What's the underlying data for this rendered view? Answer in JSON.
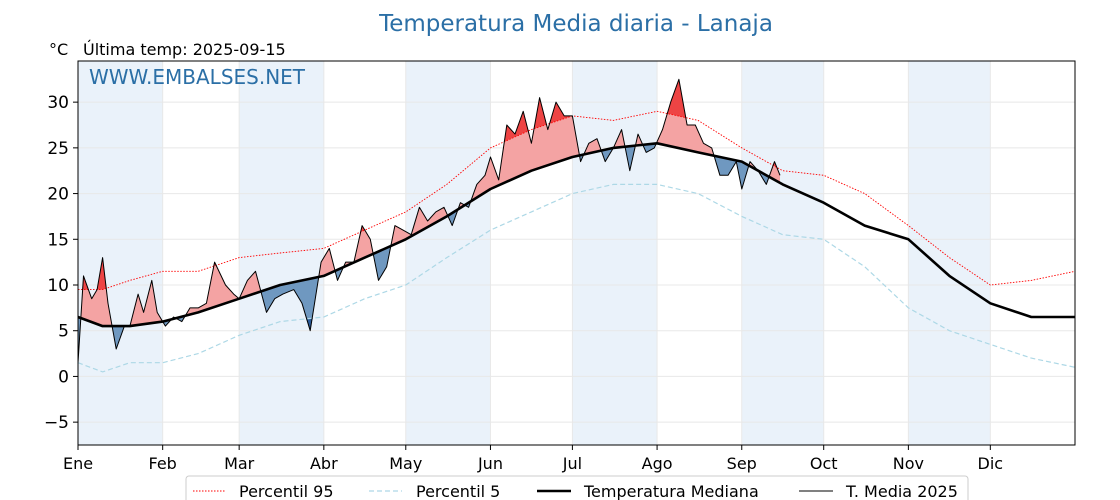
{
  "chart_data": {
    "type": "line",
    "title": "Temperatura Media diaria - Lanaja",
    "ylabel": "°C",
    "subtitle": "Última temp: 2025-09-15",
    "watermark": "WWW.EMBALSES.NET",
    "ylim": [
      -7.5,
      34.5
    ],
    "xlim": [
      1,
      366
    ],
    "y_ticks": [
      -5,
      0,
      5,
      10,
      15,
      20,
      25,
      30
    ],
    "months": [
      {
        "label": "Ene",
        "day": 1
      },
      {
        "label": "Feb",
        "day": 32
      },
      {
        "label": "Mar",
        "day": 60
      },
      {
        "label": "Abr",
        "day": 91
      },
      {
        "label": "May",
        "day": 121
      },
      {
        "label": "Jun",
        "day": 152
      },
      {
        "label": "Jul",
        "day": 182
      },
      {
        "label": "Ago",
        "day": 213
      },
      {
        "label": "Sep",
        "day": 244
      },
      {
        "label": "Oct",
        "day": 274
      },
      {
        "label": "Nov",
        "day": 305
      },
      {
        "label": "Dic",
        "day": 335
      }
    ],
    "x": [
      1,
      10,
      20,
      32,
      45,
      60,
      75,
      91,
      106,
      121,
      136,
      152,
      167,
      182,
      197,
      213,
      228,
      244,
      259,
      274,
      289,
      305,
      320,
      335,
      350,
      366
    ],
    "series": [
      {
        "name": "Percentil 95",
        "color": "#ff0000",
        "style": "dotted",
        "values": [
          9.5,
          9.5,
          10.5,
          11.5,
          11.5,
          13.0,
          13.5,
          14.0,
          16.0,
          18.0,
          21.0,
          25.0,
          27.0,
          28.5,
          28.0,
          29.0,
          28.0,
          25.0,
          22.5,
          22.0,
          20.0,
          16.5,
          13.0,
          10.0,
          10.5,
          11.5
        ]
      },
      {
        "name": "Percentil 5",
        "color": "#add8e6",
        "style": "dashed",
        "values": [
          1.5,
          0.5,
          1.5,
          1.5,
          2.5,
          4.5,
          6.0,
          6.5,
          8.5,
          10.0,
          13.0,
          16.0,
          18.0,
          20.0,
          21.0,
          21.0,
          20.0,
          17.5,
          15.5,
          15.0,
          12.0,
          7.5,
          5.0,
          3.5,
          2.0,
          1.0
        ]
      },
      {
        "name": "Temperatura Mediana",
        "color": "#000000",
        "style": "solid-thick",
        "values": [
          6.5,
          5.5,
          5.5,
          6.0,
          7.0,
          8.5,
          10.0,
          11.0,
          13.0,
          15.0,
          17.5,
          20.5,
          22.5,
          24.0,
          25.0,
          25.5,
          24.5,
          23.5,
          21.0,
          19.0,
          16.5,
          15.0,
          11.0,
          8.0,
          6.5,
          6.5
        ]
      },
      {
        "name": "T. Media 2025",
        "color": "#000000",
        "style": "solid-thin",
        "x": [
          1,
          3,
          6,
          8,
          10,
          12,
          15,
          18,
          20,
          23,
          25,
          28,
          30,
          33,
          36,
          39,
          42,
          45,
          48,
          51,
          55,
          58,
          60,
          63,
          66,
          70,
          73,
          76,
          80,
          83,
          86,
          90,
          93,
          96,
          99,
          102,
          105,
          108,
          111,
          114,
          117,
          120,
          123,
          126,
          129,
          132,
          135,
          138,
          141,
          144,
          147,
          150,
          152,
          155,
          158,
          161,
          164,
          167,
          170,
          173,
          176,
          179,
          182,
          185,
          188,
          191,
          194,
          197,
          200,
          203,
          206,
          209,
          212,
          215,
          218,
          221,
          224,
          227,
          230,
          233,
          236,
          239,
          242,
          244,
          247,
          250,
          253,
          256,
          258
        ],
        "values": [
          1.5,
          11.0,
          8.5,
          9.5,
          13.0,
          8.0,
          3.0,
          5.5,
          5.5,
          9.0,
          7.0,
          10.5,
          7.0,
          5.5,
          6.5,
          6.0,
          7.5,
          7.5,
          8.0,
          12.5,
          10.0,
          9.0,
          8.5,
          10.5,
          11.5,
          7.0,
          8.5,
          9.0,
          9.5,
          8.0,
          5.0,
          12.5,
          14.0,
          10.5,
          12.5,
          12.5,
          16.5,
          15.0,
          10.5,
          12.0,
          16.5,
          16.0,
          15.5,
          18.5,
          17.0,
          18.0,
          18.5,
          16.5,
          19.0,
          18.5,
          21.0,
          22.0,
          24.0,
          21.5,
          27.5,
          26.5,
          29.0,
          25.5,
          30.5,
          27.0,
          30.0,
          28.5,
          28.5,
          23.5,
          25.5,
          26.0,
          23.5,
          25.0,
          27.0,
          22.5,
          26.5,
          24.5,
          25.0,
          27.0,
          30.0,
          32.5,
          27.5,
          27.5,
          25.5,
          25.0,
          22.0,
          22.0,
          23.5,
          20.5,
          23.5,
          22.5,
          21.0,
          23.5,
          22.0
        ]
      }
    ],
    "legend": {
      "placement": "bottom",
      "entries": [
        "Percentil 95",
        "Percentil 5",
        "Temperatura Mediana",
        "T. Media 2025"
      ]
    },
    "colors": {
      "title": "#2b6fa6",
      "above_fill": "#f4a3a3",
      "above_extreme_fill": "#ee4444",
      "below_fill": "#6f98c0",
      "below_extreme_fill": "#2a5b9a",
      "month_band": "#eaf2fa",
      "grid": "#e8e8e8"
    },
    "grid": true
  }
}
